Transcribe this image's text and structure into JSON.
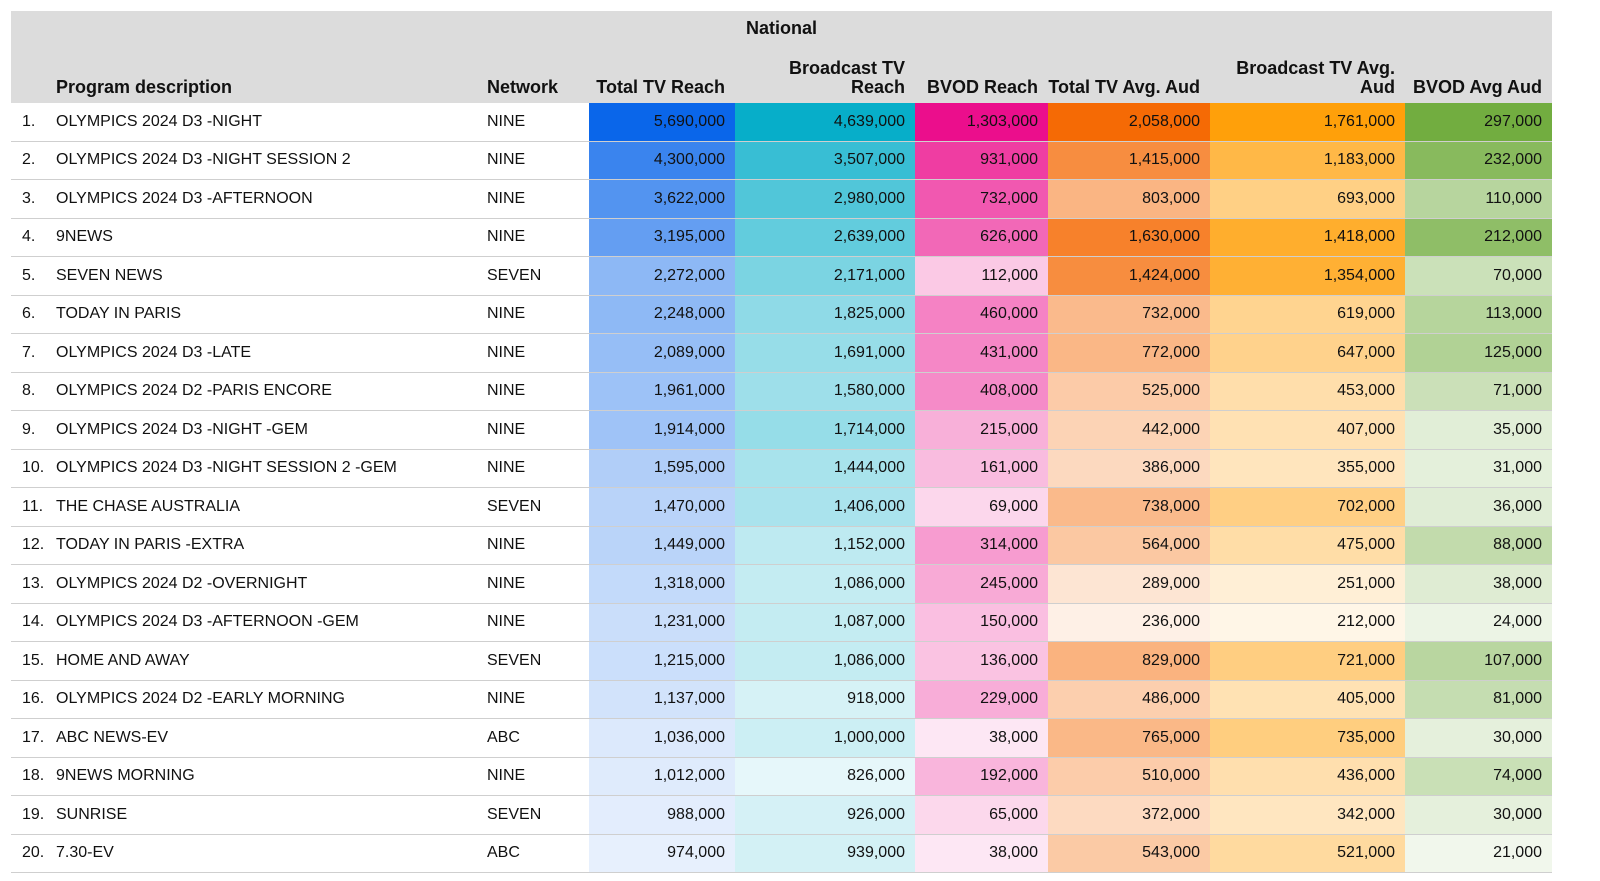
{
  "chart_data": {
    "type": "table",
    "group_header": "National",
    "columns": [
      {
        "key": "rank",
        "label": ""
      },
      {
        "key": "program",
        "label": "Program description"
      },
      {
        "key": "network",
        "label": "Network"
      },
      {
        "key": "total_tv_reach",
        "label": "Total TV Reach",
        "color": "#0a66ea"
      },
      {
        "key": "broadcast_tv_reach",
        "label": "Broadcast TV Reach",
        "color": "#07aec9"
      },
      {
        "key": "bvod_reach",
        "label": "BVOD Reach",
        "color": "#eb0e8c"
      },
      {
        "key": "total_tv_avg_aud",
        "label": "Total TV Avg. Aud",
        "color": "#f56a05"
      },
      {
        "key": "broadcast_tv_avg_aud",
        "label": "Broadcast TV Avg. Aud",
        "color": "#ffa00a"
      },
      {
        "key": "bvod_avg_aud",
        "label": "BVOD Avg Aud",
        "color": "#72ad40"
      }
    ],
    "rows": [
      {
        "rank": "1.",
        "program": "OLYMPICS 2024 D3 -NIGHT",
        "network": "NINE",
        "total_tv_reach": 5690000,
        "broadcast_tv_reach": 4639000,
        "bvod_reach": 1303000,
        "total_tv_avg_aud": 2058000,
        "broadcast_tv_avg_aud": 1761000,
        "bvod_avg_aud": 297000
      },
      {
        "rank": "2.",
        "program": "OLYMPICS 2024 D3 -NIGHT SESSION 2",
        "network": "NINE",
        "total_tv_reach": 4300000,
        "broadcast_tv_reach": 3507000,
        "bvod_reach": 931000,
        "total_tv_avg_aud": 1415000,
        "broadcast_tv_avg_aud": 1183000,
        "bvod_avg_aud": 232000
      },
      {
        "rank": "3.",
        "program": "OLYMPICS 2024 D3 -AFTERNOON",
        "network": "NINE",
        "total_tv_reach": 3622000,
        "broadcast_tv_reach": 2980000,
        "bvod_reach": 732000,
        "total_tv_avg_aud": 803000,
        "broadcast_tv_avg_aud": 693000,
        "bvod_avg_aud": 110000
      },
      {
        "rank": "4.",
        "program": "9NEWS",
        "network": "NINE",
        "total_tv_reach": 3195000,
        "broadcast_tv_reach": 2639000,
        "bvod_reach": 626000,
        "total_tv_avg_aud": 1630000,
        "broadcast_tv_avg_aud": 1418000,
        "bvod_avg_aud": 212000
      },
      {
        "rank": "5.",
        "program": "SEVEN NEWS",
        "network": "SEVEN",
        "total_tv_reach": 2272000,
        "broadcast_tv_reach": 2171000,
        "bvod_reach": 112000,
        "total_tv_avg_aud": 1424000,
        "broadcast_tv_avg_aud": 1354000,
        "bvod_avg_aud": 70000
      },
      {
        "rank": "6.",
        "program": "TODAY IN PARIS",
        "network": "NINE",
        "total_tv_reach": 2248000,
        "broadcast_tv_reach": 1825000,
        "bvod_reach": 460000,
        "total_tv_avg_aud": 732000,
        "broadcast_tv_avg_aud": 619000,
        "bvod_avg_aud": 113000
      },
      {
        "rank": "7.",
        "program": "OLYMPICS 2024 D3 -LATE",
        "network": "NINE",
        "total_tv_reach": 2089000,
        "broadcast_tv_reach": 1691000,
        "bvod_reach": 431000,
        "total_tv_avg_aud": 772000,
        "broadcast_tv_avg_aud": 647000,
        "bvod_avg_aud": 125000
      },
      {
        "rank": "8.",
        "program": "OLYMPICS 2024 D2 -PARIS ENCORE",
        "network": "NINE",
        "total_tv_reach": 1961000,
        "broadcast_tv_reach": 1580000,
        "bvod_reach": 408000,
        "total_tv_avg_aud": 525000,
        "broadcast_tv_avg_aud": 453000,
        "bvod_avg_aud": 71000
      },
      {
        "rank": "9.",
        "program": "OLYMPICS 2024 D3 -NIGHT -GEM",
        "network": "NINE",
        "total_tv_reach": 1914000,
        "broadcast_tv_reach": 1714000,
        "bvod_reach": 215000,
        "total_tv_avg_aud": 442000,
        "broadcast_tv_avg_aud": 407000,
        "bvod_avg_aud": 35000
      },
      {
        "rank": "10.",
        "program": "OLYMPICS 2024 D3 -NIGHT SESSION 2 -GEM",
        "network": "NINE",
        "total_tv_reach": 1595000,
        "broadcast_tv_reach": 1444000,
        "bvod_reach": 161000,
        "total_tv_avg_aud": 386000,
        "broadcast_tv_avg_aud": 355000,
        "bvod_avg_aud": 31000
      },
      {
        "rank": "11.",
        "program": "THE CHASE AUSTRALIA",
        "network": "SEVEN",
        "total_tv_reach": 1470000,
        "broadcast_tv_reach": 1406000,
        "bvod_reach": 69000,
        "total_tv_avg_aud": 738000,
        "broadcast_tv_avg_aud": 702000,
        "bvod_avg_aud": 36000
      },
      {
        "rank": "12.",
        "program": "TODAY IN PARIS -EXTRA",
        "network": "NINE",
        "total_tv_reach": 1449000,
        "broadcast_tv_reach": 1152000,
        "bvod_reach": 314000,
        "total_tv_avg_aud": 564000,
        "broadcast_tv_avg_aud": 475000,
        "bvod_avg_aud": 88000
      },
      {
        "rank": "13.",
        "program": "OLYMPICS 2024 D2 -OVERNIGHT",
        "network": "NINE",
        "total_tv_reach": 1318000,
        "broadcast_tv_reach": 1086000,
        "bvod_reach": 245000,
        "total_tv_avg_aud": 289000,
        "broadcast_tv_avg_aud": 251000,
        "bvod_avg_aud": 38000
      },
      {
        "rank": "14.",
        "program": "OLYMPICS 2024 D3 -AFTERNOON -GEM",
        "network": "NINE",
        "total_tv_reach": 1231000,
        "broadcast_tv_reach": 1087000,
        "bvod_reach": 150000,
        "total_tv_avg_aud": 236000,
        "broadcast_tv_avg_aud": 212000,
        "bvod_avg_aud": 24000
      },
      {
        "rank": "15.",
        "program": "HOME AND AWAY",
        "network": "SEVEN",
        "total_tv_reach": 1215000,
        "broadcast_tv_reach": 1086000,
        "bvod_reach": 136000,
        "total_tv_avg_aud": 829000,
        "broadcast_tv_avg_aud": 721000,
        "bvod_avg_aud": 107000
      },
      {
        "rank": "16.",
        "program": "OLYMPICS 2024 D2 -EARLY MORNING",
        "network": "NINE",
        "total_tv_reach": 1137000,
        "broadcast_tv_reach": 918000,
        "bvod_reach": 229000,
        "total_tv_avg_aud": 486000,
        "broadcast_tv_avg_aud": 405000,
        "bvod_avg_aud": 81000
      },
      {
        "rank": "17.",
        "program": "ABC NEWS-EV",
        "network": "ABC",
        "total_tv_reach": 1036000,
        "broadcast_tv_reach": 1000000,
        "bvod_reach": 38000,
        "total_tv_avg_aud": 765000,
        "broadcast_tv_avg_aud": 735000,
        "bvod_avg_aud": 30000
      },
      {
        "rank": "18.",
        "program": "9NEWS MORNING",
        "network": "NINE",
        "total_tv_reach": 1012000,
        "broadcast_tv_reach": 826000,
        "bvod_reach": 192000,
        "total_tv_avg_aud": 510000,
        "broadcast_tv_avg_aud": 436000,
        "bvod_avg_aud": 74000
      },
      {
        "rank": "19.",
        "program": "SUNRISE",
        "network": "SEVEN",
        "total_tv_reach": 988000,
        "broadcast_tv_reach": 926000,
        "bvod_reach": 65000,
        "total_tv_avg_aud": 372000,
        "broadcast_tv_avg_aud": 342000,
        "bvod_avg_aud": 30000
      },
      {
        "rank": "20.",
        "program": "7.30-EV",
        "network": "ABC",
        "total_tv_reach": 974000,
        "broadcast_tv_reach": 939000,
        "bvod_reach": 38000,
        "total_tv_avg_aud": 543000,
        "broadcast_tv_avg_aud": 521000,
        "bvod_avg_aud": 21000
      }
    ]
  }
}
